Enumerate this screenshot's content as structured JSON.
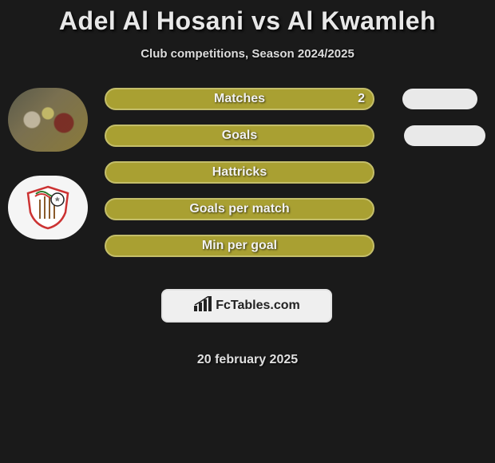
{
  "title": "Adel Al Hosani vs Al Kwamleh",
  "subtitle": "Club competitions, Season 2024/2025",
  "date": "20 february 2025",
  "branding": {
    "text": "FcTables.com"
  },
  "colors": {
    "background": "#1a1a1a",
    "pill_fill": "#a9a032",
    "pill_border": "#c4be6a",
    "pill_text": "#f2f2f2",
    "side_pill": "#e9e9e9",
    "branding_bg": "#efefef",
    "branding_text": "#222222",
    "title_text": "#e8e8e8",
    "subtitle_text": "#dcdcdc"
  },
  "stats": [
    {
      "label": "Matches",
      "value_right": "2",
      "has_side": true
    },
    {
      "label": "Goals",
      "value_right": "",
      "has_side": true
    },
    {
      "label": "Hattricks",
      "value_right": "",
      "has_side": false
    },
    {
      "label": "Goals per match",
      "value_right": "",
      "has_side": false
    },
    {
      "label": "Min per goal",
      "value_right": "",
      "has_side": false
    }
  ],
  "avatars": [
    {
      "kind": "photo"
    },
    {
      "kind": "logo"
    }
  ],
  "style": {
    "pill_width": 338,
    "pill_height": 28,
    "pill_radius": 14,
    "pill_gap": 18,
    "title_fontsize": 32,
    "subtitle_fontsize": 15,
    "stat_fontsize": 16,
    "branding_width": 214,
    "branding_height": 42,
    "avatar_width": 100,
    "avatar_height": 80
  }
}
